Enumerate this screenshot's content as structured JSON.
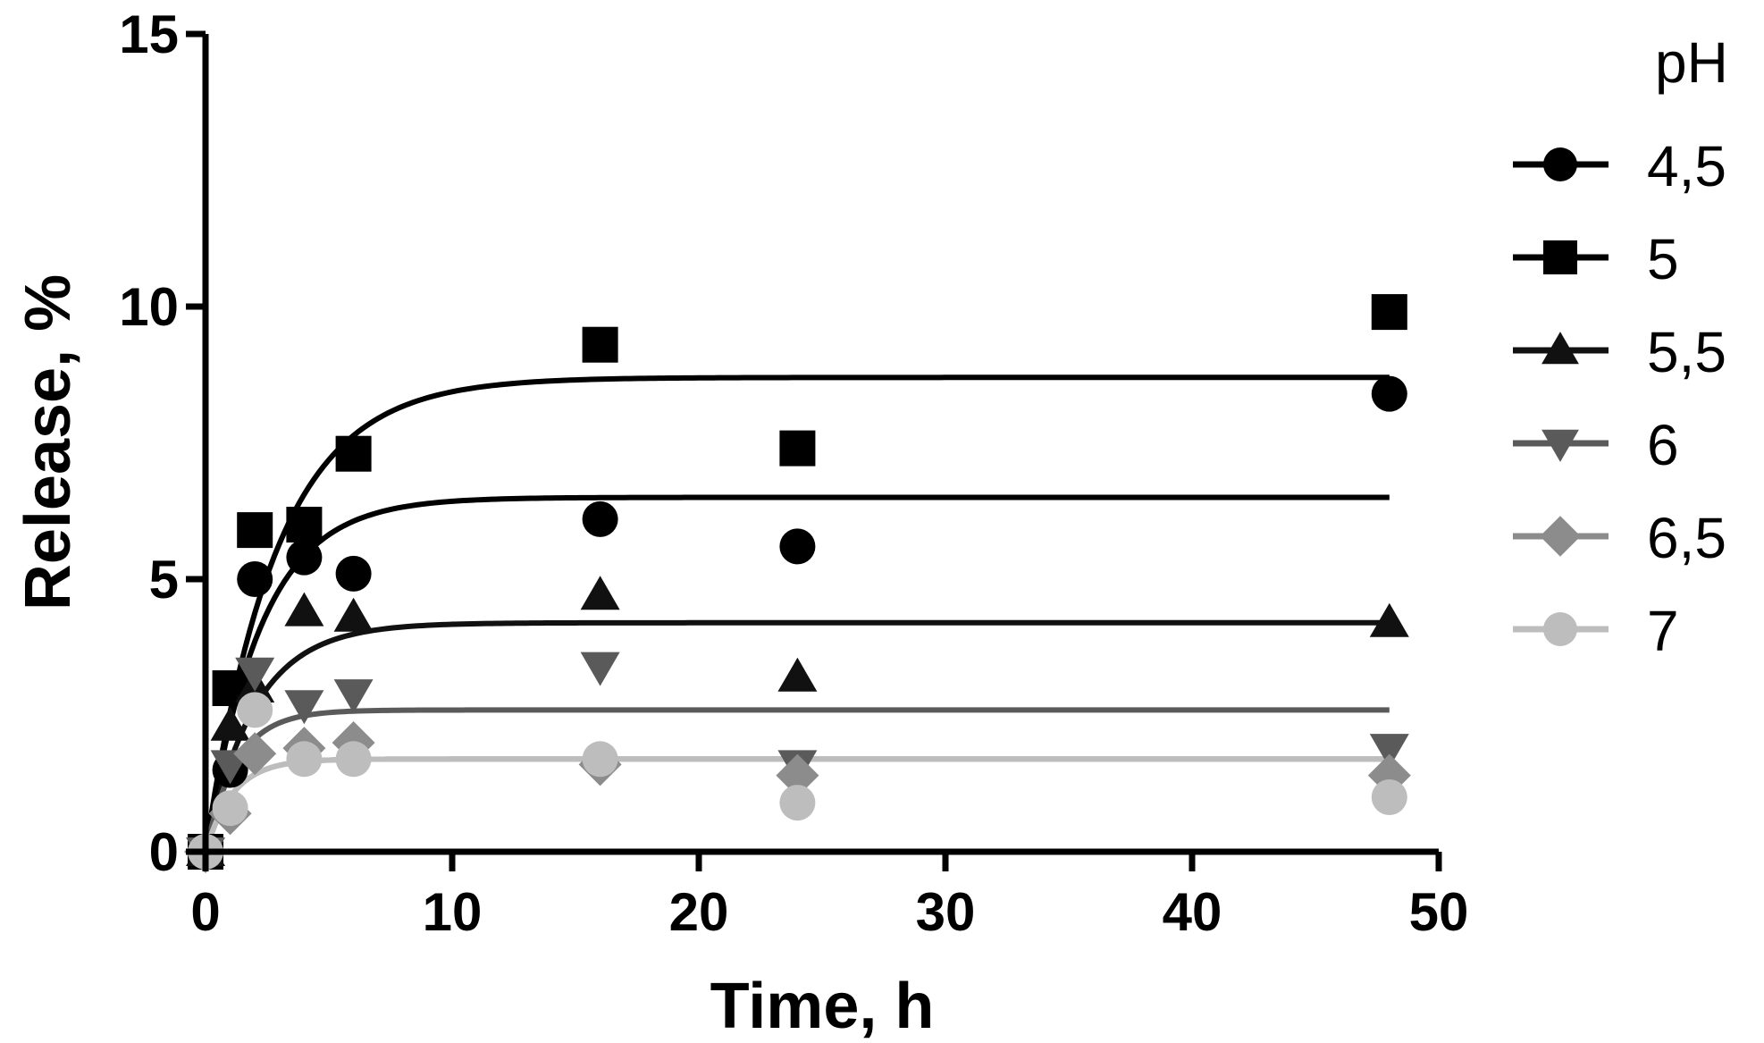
{
  "chart_data": {
    "type": "scatter",
    "xlabel": "Time, h",
    "ylabel": "Release, %",
    "xlim": [
      0,
      50
    ],
    "ylim": [
      0,
      15
    ],
    "x_ticks": [
      0,
      10,
      20,
      30,
      40,
      50
    ],
    "y_ticks": [
      0,
      5,
      10,
      15
    ],
    "grid": false,
    "legend": {
      "title": "pH",
      "placement": "right"
    },
    "x": [
      0,
      1,
      2,
      4,
      6,
      16,
      24,
      48
    ],
    "series": [
      {
        "name": "4,5",
        "marker": "circle",
        "color": "#000000",
        "values": [
          0,
          1.5,
          5.0,
          5.4,
          5.1,
          6.1,
          5.6,
          8.4
        ],
        "fit": {
          "plateau": 6.5,
          "k": 0.45
        }
      },
      {
        "name": "5",
        "marker": "square",
        "color": "#000000",
        "values": [
          0,
          3.0,
          5.9,
          6.0,
          7.3,
          9.3,
          7.4,
          9.9
        ],
        "fit": {
          "plateau": 8.7,
          "k": 0.35
        }
      },
      {
        "name": "5,5",
        "marker": "triangle-up",
        "color": "#111111",
        "values": [
          0,
          2.3,
          3.0,
          4.4,
          4.3,
          4.7,
          3.2,
          4.2
        ],
        "fit": {
          "plateau": 4.2,
          "k": 0.5
        }
      },
      {
        "name": "6",
        "marker": "triangle-down",
        "color": "#5a5a5a",
        "values": [
          0,
          1.6,
          3.3,
          2.7,
          2.9,
          3.4,
          1.6,
          1.9
        ],
        "fit": {
          "plateau": 2.6,
          "k": 0.8
        }
      },
      {
        "name": "6,5",
        "marker": "diamond",
        "color": "#8c8c8c",
        "values": [
          0,
          0.7,
          1.8,
          1.9,
          2.0,
          1.6,
          1.4,
          1.4
        ],
        "fit": {
          "plateau": 1.7,
          "k": 0.9
        }
      },
      {
        "name": "7",
        "marker": "circle",
        "color": "#bdbdbd",
        "values": [
          0,
          0.8,
          2.6,
          1.7,
          1.7,
          1.7,
          0.9,
          1.0
        ],
        "fit": {
          "plateau": 1.7,
          "k": 0.9
        }
      }
    ]
  }
}
